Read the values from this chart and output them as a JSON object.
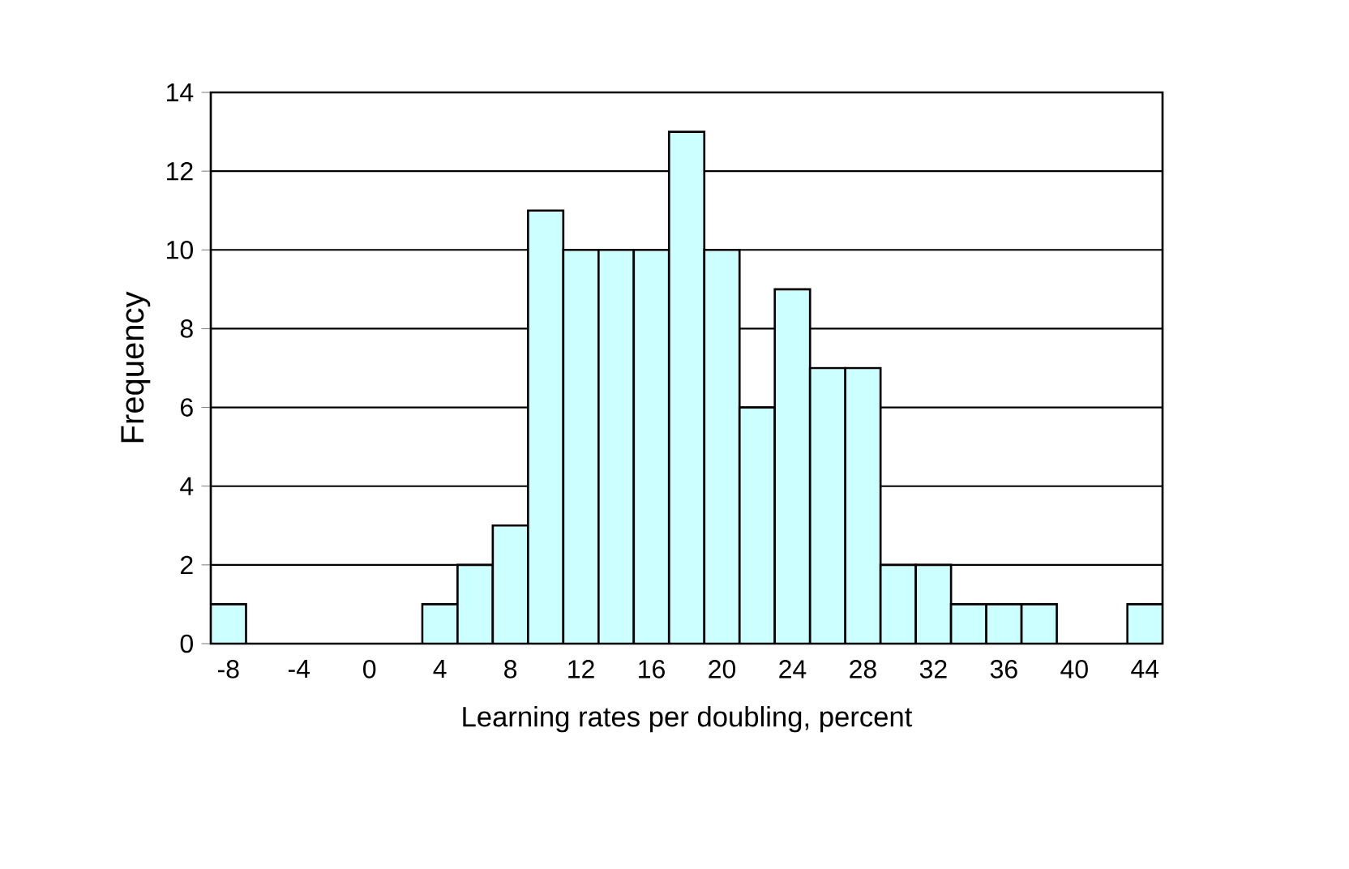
{
  "chart_data": {
    "type": "histogram",
    "xlabel": "Learning rates per doubling, percent",
    "ylabel": "Frequency",
    "bins": [
      -9,
      -7,
      -5,
      -3,
      -1,
      1,
      3,
      5,
      7,
      9,
      11,
      13,
      15,
      17,
      19,
      21,
      23,
      25,
      27,
      29,
      31,
      33,
      35,
      37,
      39,
      41,
      43,
      45
    ],
    "values": [
      1,
      0,
      0,
      0,
      0,
      0,
      1,
      2,
      3,
      11,
      10,
      10,
      10,
      13,
      10,
      6,
      9,
      7,
      7,
      2,
      2,
      1,
      1,
      1,
      0,
      0,
      1
    ],
    "color": "#ccffff",
    "xlim": [
      -9,
      45
    ],
    "xticks": [
      -8,
      -4,
      0,
      4,
      8,
      12,
      16,
      20,
      24,
      28,
      32,
      36,
      40,
      44
    ],
    "ylim": [
      0,
      14
    ],
    "yticks": [
      0,
      2,
      4,
      6,
      8,
      10,
      12,
      14
    ],
    "grid": "y"
  }
}
